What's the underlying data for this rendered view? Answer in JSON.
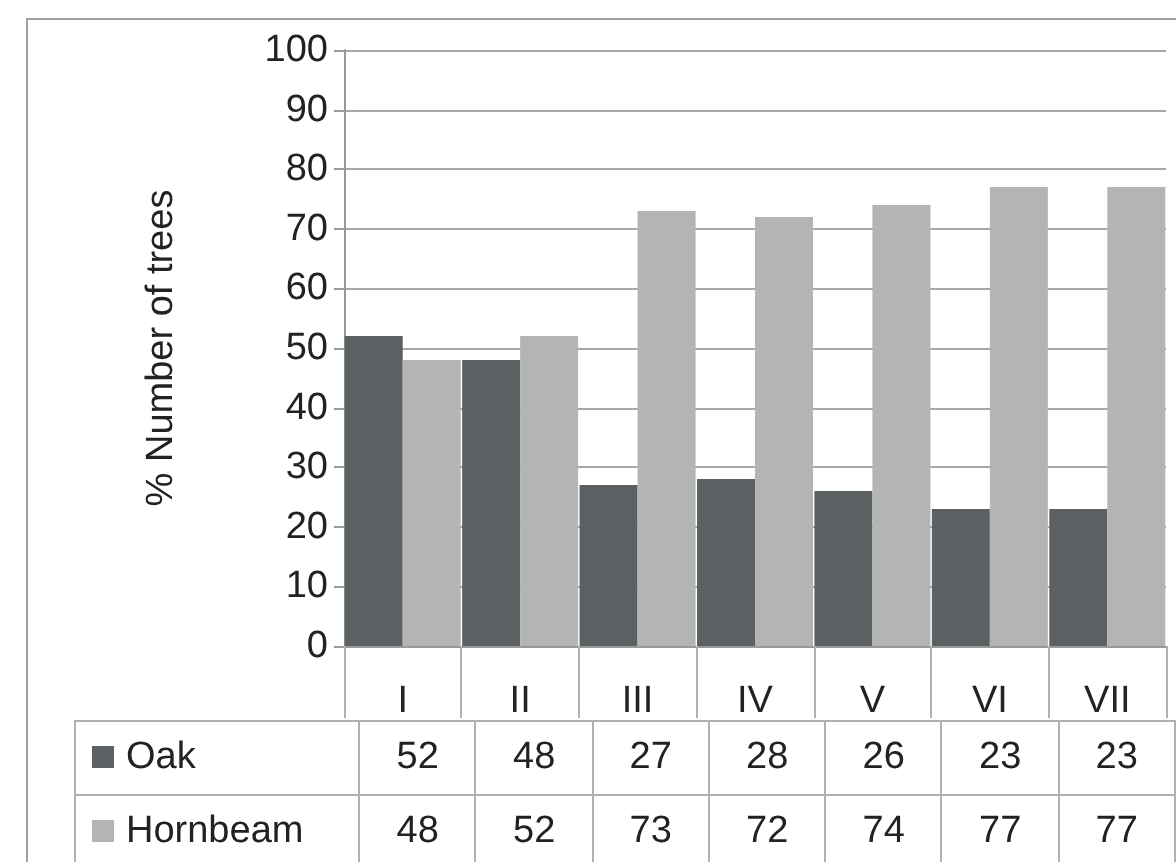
{
  "chart_data": {
    "type": "bar",
    "ylabel": "% Number of trees",
    "categories": [
      "I",
      "II",
      "III",
      "IV",
      "V",
      "VI",
      "VII"
    ],
    "series": [
      {
        "name": "Oak",
        "color": "#5b6062",
        "values": [
          52,
          48,
          27,
          28,
          26,
          23,
          23
        ]
      },
      {
        "name": "Hornbeam",
        "color": "#b4b4b4",
        "values": [
          48,
          52,
          73,
          72,
          74,
          77,
          77
        ]
      }
    ],
    "ylim": [
      0,
      100
    ],
    "yticks": [
      0,
      10,
      20,
      30,
      40,
      50,
      60,
      70,
      80,
      90,
      100
    ],
    "grid": "y",
    "legend": "bottom",
    "data_labels": true
  }
}
